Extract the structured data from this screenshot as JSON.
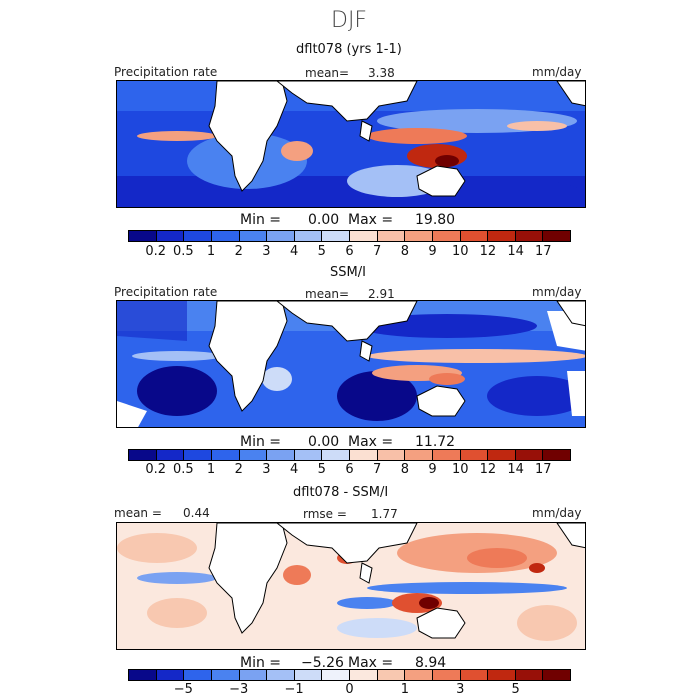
{
  "title": "DJF",
  "panels": [
    {
      "subtitle": "dflt078 (yrs 1-1)",
      "left_label": "Precipitation rate",
      "stat_label": "mean=",
      "stat_value": "3.38",
      "units": "mm/day",
      "min_label": "Min =",
      "min_value": "0.00",
      "max_label": "Max =",
      "max_value": "19.80"
    },
    {
      "subtitle": "SSM/I",
      "left_label": "Precipitation rate",
      "stat_label": "mean=",
      "stat_value": "2.91",
      "units": "mm/day",
      "min_label": "Min =",
      "min_value": "0.00",
      "max_label": "Max =",
      "max_value": "11.72"
    },
    {
      "subtitle": "dflt078 - SSM/I",
      "left_label": "mean =",
      "left_value": "0.44",
      "stat_label": "rmse =",
      "stat_value": "1.77",
      "units": "mm/day",
      "min_label": "Min =",
      "min_value": "−5.26",
      "max_label": "Max =",
      "max_value": "8.94"
    }
  ],
  "precip_colorbar": {
    "ticks": [
      "0.2",
      "0.5",
      "1",
      "2",
      "3",
      "4",
      "5",
      "6",
      "7",
      "8",
      "9",
      "10",
      "12",
      "14",
      "17"
    ],
    "colors": [
      "#08088a",
      "#1428c8",
      "#1e48e0",
      "#2e64ec",
      "#4a82f0",
      "#7aa2f2",
      "#a4c0f6",
      "#cddcf8",
      "#fbe0d2",
      "#f8c0a8",
      "#f4a080",
      "#ee7a58",
      "#e05030",
      "#c02810",
      "#981008",
      "#700000"
    ]
  },
  "diff_colorbar": {
    "ticks": [
      "−5",
      "−3",
      "−1",
      "0",
      "1",
      "3",
      "5"
    ],
    "colors": [
      "#08088a",
      "#1428c8",
      "#2e64ec",
      "#4a82f0",
      "#7aa2f2",
      "#a4c0f6",
      "#cddcf8",
      "#eef2fb",
      "#fbe8de",
      "#f8c8b0",
      "#f4a080",
      "#ee7a58",
      "#e05030",
      "#c02810",
      "#981008",
      "#700000"
    ]
  }
}
